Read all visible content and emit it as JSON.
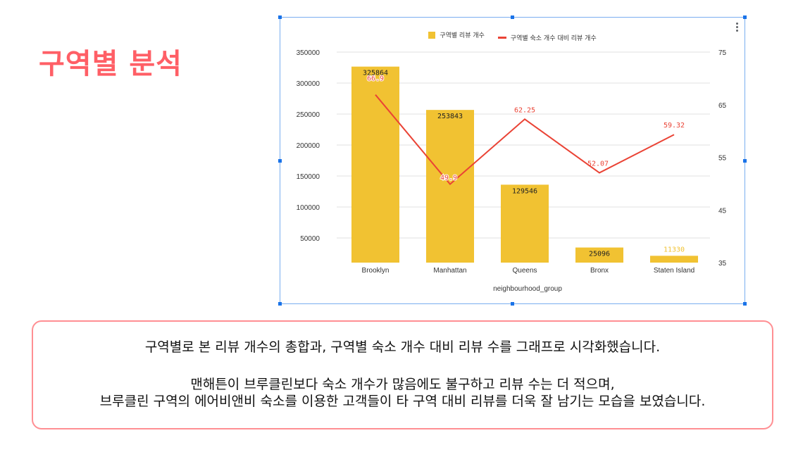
{
  "page": {
    "title": "구역별 분석"
  },
  "chart": {
    "legend": {
      "bar_label": "구역별 리뷰 개수",
      "line_label": "구역별 숙소 개수 대비 리뷰 개수"
    },
    "menu_icon": "kebab-menu-icon",
    "colors": {
      "bar": "#f1c232",
      "line": "#ea4335",
      "grid": "#e0e0e0",
      "frame": "#7aaef0"
    }
  },
  "chart_data": {
    "type": "bar",
    "title": "",
    "categories": [
      "Brooklyn",
      "Manhattan",
      "Queens",
      "Bronx",
      "Staten Island"
    ],
    "series": [
      {
        "name": "구역별 리뷰 개수",
        "type": "bar",
        "axis": "left",
        "values": [
          325864,
          253843,
          129546,
          25096,
          11330
        ],
        "labels": [
          "325864",
          "253843",
          "129546",
          "25096",
          "11330"
        ]
      },
      {
        "name": "구역별 숙소 개수 대비 리뷰 개수",
        "type": "line",
        "axis": "right",
        "values": [
          66.9,
          49.9,
          62.25,
          52.07,
          59.32
        ],
        "labels": [
          "66.9",
          "49.9",
          "62.25",
          "52.07",
          "59.32"
        ]
      }
    ],
    "xlabel": "neighbourhood_group",
    "ylabel": "",
    "y_left": {
      "ticks": [
        "350000",
        "300000",
        "250000",
        "200000",
        "150000",
        "100000",
        "50000"
      ],
      "ylim": [
        0,
        350000
      ]
    },
    "y_right": {
      "ticks": [
        "75",
        "65",
        "55",
        "45",
        "35"
      ],
      "ylim": [
        35,
        75
      ]
    },
    "grid": true,
    "legend_position": "top"
  },
  "note": {
    "line1": "구역별로 본 리뷰 개수의 총합과, 구역별 숙소 개수 대비 리뷰 수를 그래프로 시각화했습니다.",
    "line2": "맨해튼이 브루클린보다 숙소 개수가 많음에도 불구하고 리뷰 수는 더 적으며,",
    "line3": "브루클린 구역의 에어비앤비 숙소를 이용한 고객들이 타 구역 대비 리뷰를 더욱 잘 남기는 모습을 보였습니다."
  }
}
